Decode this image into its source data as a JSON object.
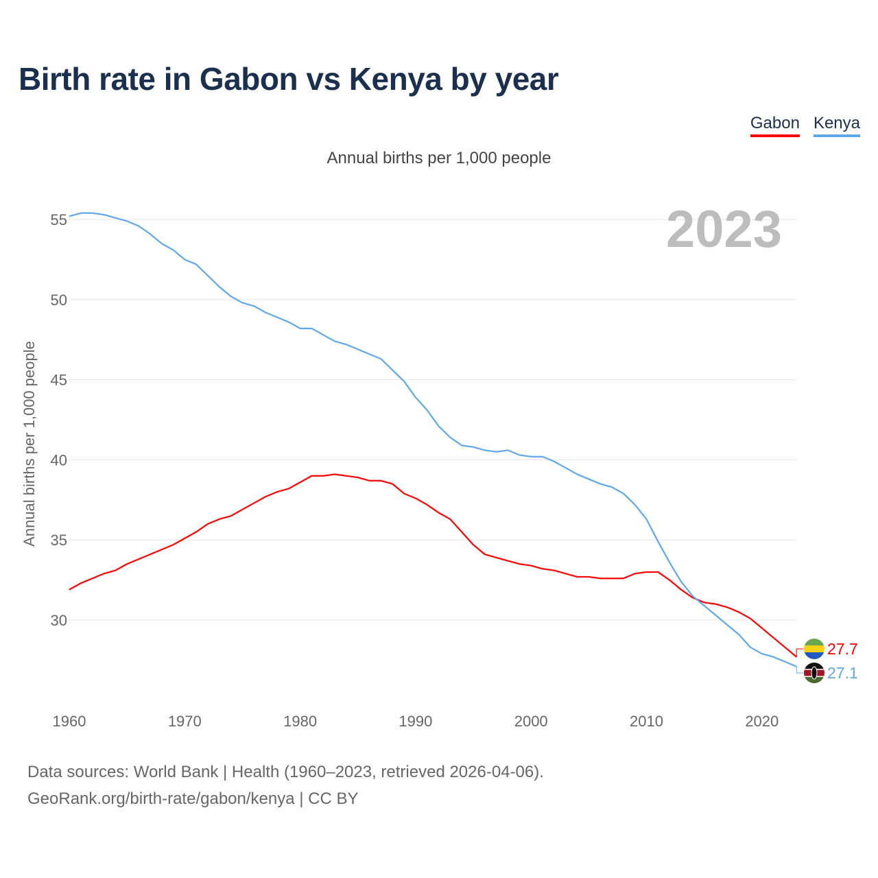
{
  "title": "Birth rate in Gabon vs Kenya by year",
  "subtitle": "Annual births per 1,000 people",
  "year_label": "2023",
  "source_line1": "Data sources: World Bank | Health (1960–2023, retrieved 2026-04-06).",
  "source_line2": "GeoRank.org/birth-rate/gabon/kenya | CC BY",
  "chart_data": {
    "type": "line",
    "title": "Birth rate in Gabon vs Kenya by year",
    "xlabel": "",
    "ylabel": "Annual births per 1,000 people",
    "xlim": [
      1960,
      2023
    ],
    "ylim": [
      25.5,
      57
    ],
    "xticks": [
      "1960",
      "1970",
      "1980",
      "1990",
      "2000",
      "2010",
      "2020"
    ],
    "yticks": [
      "30",
      "35",
      "40",
      "45",
      "50",
      "55"
    ],
    "grid": true,
    "legend_position": "top-right",
    "x": [
      1960,
      1961,
      1962,
      1963,
      1964,
      1965,
      1966,
      1967,
      1968,
      1969,
      1970,
      1971,
      1972,
      1973,
      1974,
      1975,
      1976,
      1977,
      1978,
      1979,
      1980,
      1981,
      1982,
      1983,
      1984,
      1985,
      1986,
      1987,
      1988,
      1989,
      1990,
      1991,
      1992,
      1993,
      1994,
      1995,
      1996,
      1997,
      1998,
      1999,
      2000,
      2001,
      2002,
      2003,
      2004,
      2005,
      2006,
      2007,
      2008,
      2009,
      2010,
      2011,
      2012,
      2013,
      2014,
      2015,
      2016,
      2017,
      2018,
      2019,
      2020,
      2021,
      2022,
      2023
    ],
    "series": [
      {
        "name": "Gabon",
        "color": "#ff0000",
        "end_label": "27.7",
        "values": [
          31.9,
          32.3,
          32.6,
          32.9,
          33.1,
          33.5,
          33.8,
          34.1,
          34.4,
          34.7,
          35.1,
          35.5,
          36.0,
          36.3,
          36.5,
          36.9,
          37.3,
          37.7,
          38.0,
          38.2,
          38.6,
          39.0,
          39.0,
          39.1,
          39.0,
          38.9,
          38.7,
          38.7,
          38.5,
          37.9,
          37.6,
          37.2,
          36.7,
          36.3,
          35.5,
          34.7,
          34.1,
          33.9,
          33.7,
          33.5,
          33.4,
          33.2,
          33.1,
          32.9,
          32.7,
          32.7,
          32.6,
          32.6,
          32.6,
          32.9,
          33.0,
          33.0,
          32.5,
          31.9,
          31.4,
          31.1,
          31.0,
          30.8,
          30.5,
          30.1,
          29.5,
          28.9,
          28.3,
          27.7
        ]
      },
      {
        "name": "Kenya",
        "color": "#5ea8ec",
        "end_label": "27.1",
        "values": [
          55.2,
          55.4,
          55.4,
          55.3,
          55.1,
          54.9,
          54.6,
          54.1,
          53.5,
          53.1,
          52.5,
          52.2,
          51.5,
          50.8,
          50.2,
          49.8,
          49.6,
          49.2,
          48.9,
          48.6,
          48.2,
          48.2,
          47.8,
          47.4,
          47.2,
          46.9,
          46.6,
          46.3,
          45.6,
          44.9,
          43.9,
          43.1,
          42.1,
          41.4,
          40.9,
          40.8,
          40.6,
          40.5,
          40.6,
          40.3,
          40.2,
          40.2,
          39.9,
          39.5,
          39.1,
          38.8,
          38.5,
          38.3,
          37.9,
          37.2,
          36.3,
          34.9,
          33.6,
          32.4,
          31.5,
          30.9,
          30.3,
          29.7,
          29.1,
          28.3,
          27.9,
          27.7,
          27.4,
          27.1
        ]
      }
    ]
  }
}
